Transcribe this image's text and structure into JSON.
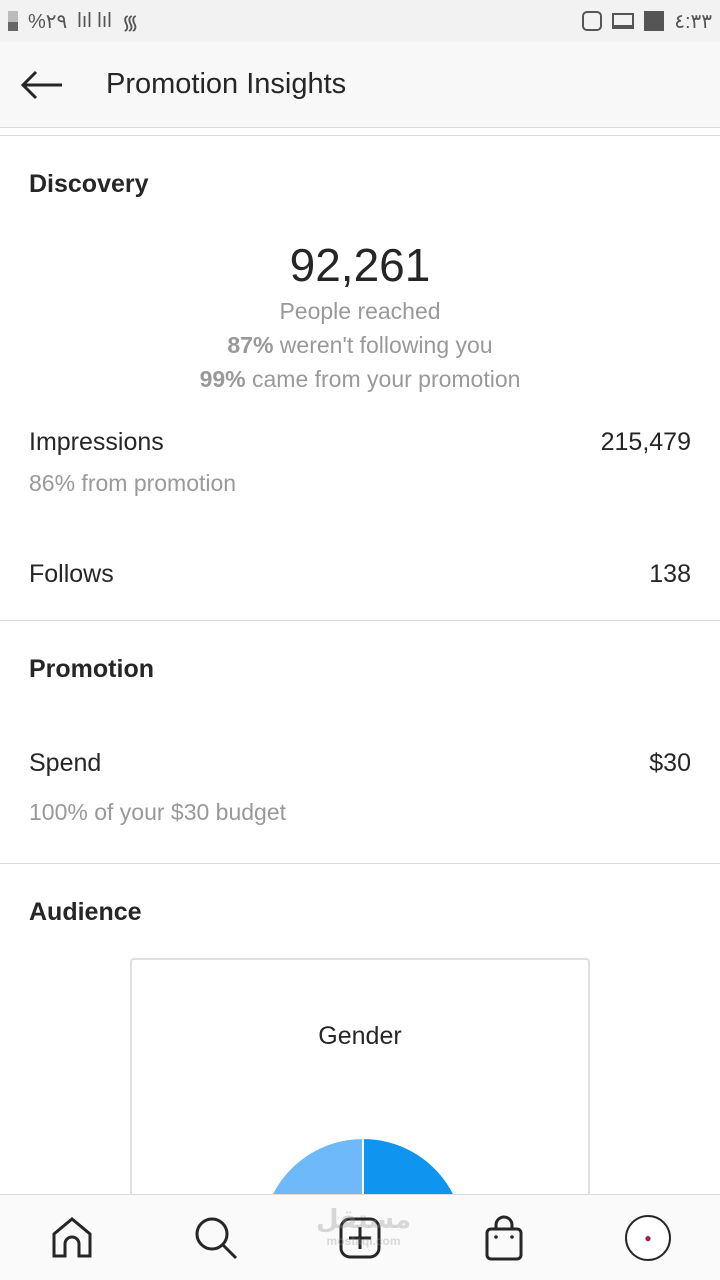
{
  "status_bar": {
    "battery": "%٢٩",
    "time": "٤:٣٣"
  },
  "header": {
    "title": "Promotion Insights"
  },
  "discovery": {
    "heading": "Discovery",
    "reach": "92,261",
    "reach_label": "People reached",
    "not_following_pct": "87%",
    "not_following_text": " weren't following you",
    "promo_pct": "99%",
    "promo_text": " came from your promotion",
    "impressions_label": "Impressions",
    "impressions_value": "215,479",
    "impressions_sub": "86% from promotion",
    "follows_label": "Follows",
    "follows_value": "138"
  },
  "promotion": {
    "heading": "Promotion",
    "spend_label": "Spend",
    "spend_value": "$30",
    "spend_sub": "100% of your $30 budget"
  },
  "audience": {
    "heading": "Audience",
    "card_title": "Gender",
    "gender_share": {
      "left_pct": 50,
      "right_pct": 50
    },
    "colors": {
      "left": "#6db9f9",
      "right": "#0f95f0"
    }
  },
  "nav": {
    "items": [
      "home-icon",
      "search-icon",
      "new-post-icon",
      "shop-icon",
      "profile-avatar"
    ]
  },
  "watermark": {
    "text": "مستقل",
    "url": "mostaql.com"
  }
}
